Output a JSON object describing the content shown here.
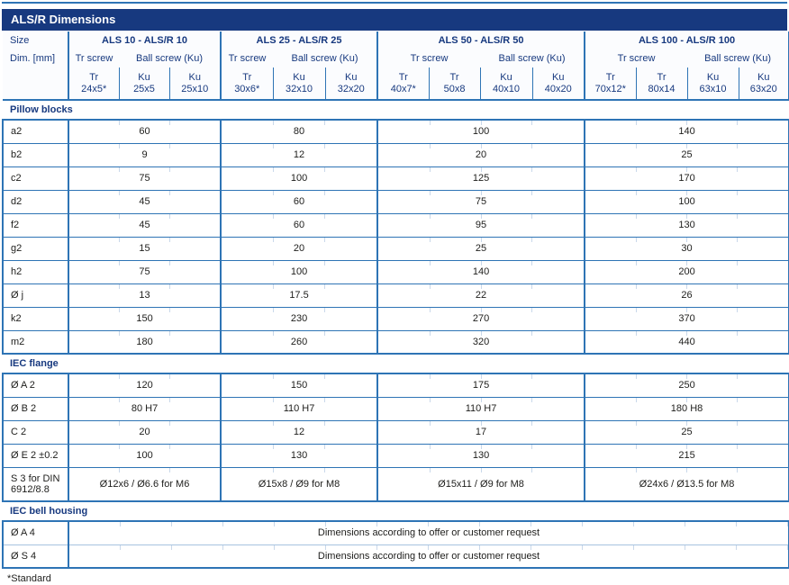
{
  "title": "ALS/R Dimensions",
  "header": {
    "size_label": "Size",
    "dim_label": "Dim. [mm]",
    "groups": [
      {
        "name": "ALS 10 - ALS/R 10",
        "tr_label": "Tr screw",
        "ball_label": "Ball screw (Ku)",
        "tr_span": 1,
        "columns": [
          {
            "type": "Tr",
            "size": "24x5*"
          },
          {
            "type": "Ku",
            "size": "25x5"
          },
          {
            "type": "Ku",
            "size": "25x10"
          }
        ]
      },
      {
        "name": "ALS 25 - ALS/R 25",
        "tr_label": "Tr screw",
        "ball_label": "Ball screw (Ku)",
        "tr_span": 1,
        "columns": [
          {
            "type": "Tr",
            "size": "30x6*"
          },
          {
            "type": "Ku",
            "size": "32x10"
          },
          {
            "type": "Ku",
            "size": "32x20"
          }
        ]
      },
      {
        "name": "ALS 50 - ALS/R 50",
        "tr_label": "Tr screw",
        "ball_label": "Ball screw (Ku)",
        "tr_span": 2,
        "columns": [
          {
            "type": "Tr",
            "size": "40x7*"
          },
          {
            "type": "Tr",
            "size": "50x8"
          },
          {
            "type": "Ku",
            "size": "40x10"
          },
          {
            "type": "Ku",
            "size": "40x20"
          }
        ]
      },
      {
        "name": "ALS 100 - ALS/R 100",
        "tr_label": "Tr screw",
        "ball_label": "Ball screw (Ku)",
        "tr_span": 2,
        "columns": [
          {
            "type": "Tr",
            "size": "70x12*"
          },
          {
            "type": "Tr",
            "size": "80x14"
          },
          {
            "type": "Ku",
            "size": "63x10"
          },
          {
            "type": "Ku",
            "size": "63x20"
          }
        ]
      }
    ]
  },
  "sections": [
    {
      "name": "Pillow blocks",
      "rows": [
        {
          "label": "a2",
          "values": [
            "60",
            "80",
            "100",
            "140"
          ]
        },
        {
          "label": "b2",
          "values": [
            "9",
            "12",
            "20",
            "25"
          ]
        },
        {
          "label": "c2",
          "values": [
            "75",
            "100",
            "125",
            "170"
          ]
        },
        {
          "label": "d2",
          "values": [
            "45",
            "60",
            "75",
            "100"
          ]
        },
        {
          "label": "f2",
          "values": [
            "45",
            "60",
            "95",
            "130"
          ]
        },
        {
          "label": "g2",
          "values": [
            "15",
            "20",
            "25",
            "30"
          ]
        },
        {
          "label": "h2",
          "values": [
            "75",
            "100",
            "140",
            "200"
          ]
        },
        {
          "label": "Ø j",
          "values": [
            "13",
            "17.5",
            "22",
            "26"
          ]
        },
        {
          "label": "k2",
          "values": [
            "150",
            "230",
            "270",
            "370"
          ]
        },
        {
          "label": "m2",
          "values": [
            "180",
            "260",
            "320",
            "440"
          ]
        }
      ]
    },
    {
      "name": "IEC flange",
      "rows": [
        {
          "label": "Ø A 2",
          "values": [
            "120",
            "150",
            "175",
            "250"
          ]
        },
        {
          "label": "Ø B 2",
          "values": [
            "80 H7",
            "110 H7",
            "110 H7",
            "180 H8"
          ]
        },
        {
          "label": "C 2",
          "values": [
            "20",
            "12",
            "17",
            "25"
          ]
        },
        {
          "label": "Ø E 2 ±0.2",
          "values": [
            "100",
            "130",
            "130",
            "215"
          ]
        },
        {
          "label": "S 3 for DIN 6912/8.8",
          "values": [
            "Ø12x6 / Ø6.6 for M6",
            "Ø15x8 / Ø9 for M8",
            "Ø15x11 / Ø9 for M8",
            "Ø24x6 / Ø13.5 for M8"
          ]
        }
      ]
    },
    {
      "name": "IEC bell housing",
      "rows": [
        {
          "label": "Ø A 4",
          "values_full": "Dimensions according to offer or customer request"
        },
        {
          "label": "Ø S 4",
          "values_full": "Dimensions according to offer or customer request"
        }
      ]
    }
  ],
  "footnote": "*Standard",
  "colors": {
    "navy": "#17397f",
    "border": "#2e74b5",
    "tick": "#c9d8ea",
    "light_separator": "#a6c3e0"
  }
}
